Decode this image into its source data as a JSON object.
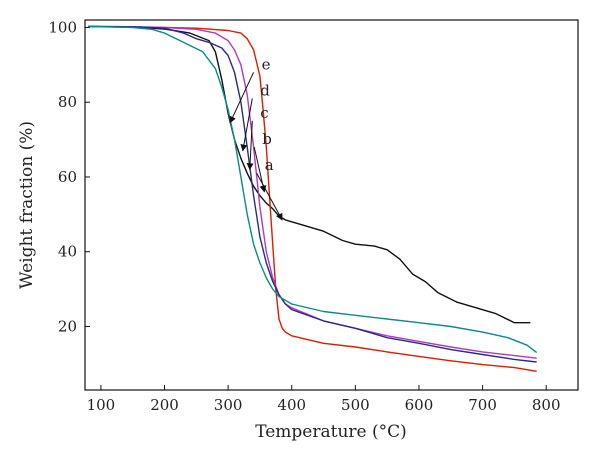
{
  "chart_data": {
    "type": "line",
    "xlabel": "Temperature (°C)",
    "ylabel": "Weight fraction (%)",
    "xlim": [
      75,
      850
    ],
    "ylim": [
      3,
      102
    ],
    "xticks": [
      100,
      200,
      300,
      400,
      500,
      600,
      700,
      800
    ],
    "yticks": [
      20,
      40,
      60,
      80,
      100
    ],
    "grid": false,
    "series": [
      {
        "name": "a",
        "color": "#111111",
        "x": [
          80,
          150,
          200,
          240,
          270,
          280,
          290,
          300,
          310,
          320,
          330,
          340,
          350,
          360,
          370,
          380,
          390,
          400,
          420,
          450,
          480,
          500,
          530,
          550,
          570,
          590,
          610,
          630,
          660,
          690,
          720,
          750,
          775
        ],
        "y": [
          100.3,
          100.1,
          99.6,
          98.5,
          96.5,
          93.5,
          86,
          77,
          70,
          65,
          61,
          57.5,
          55,
          53,
          51.5,
          49.5,
          48.5,
          48,
          47,
          45.5,
          43,
          42,
          41.5,
          40.5,
          38,
          34,
          32,
          29,
          26.5,
          25,
          23.5,
          21,
          21
        ]
      },
      {
        "name": "b",
        "color": "#d81e05",
        "x": [
          80,
          150,
          200,
          250,
          300,
          320,
          330,
          340,
          350,
          355,
          360,
          365,
          370,
          375,
          380,
          385,
          390,
          400,
          450,
          500,
          550,
          600,
          650,
          700,
          750,
          785
        ],
        "y": [
          100.3,
          100.1,
          100,
          99.8,
          99.2,
          98.5,
          97,
          94,
          87,
          78,
          68,
          55,
          42,
          30,
          22,
          19.5,
          18.5,
          17.5,
          15.5,
          14.5,
          13.2,
          12,
          10.8,
          9.8,
          9,
          8
        ]
      },
      {
        "name": "c",
        "color": "#b03ac0",
        "x": [
          80,
          150,
          200,
          250,
          280,
          300,
          310,
          320,
          330,
          340,
          350,
          360,
          370,
          380,
          390,
          400,
          450,
          500,
          550,
          600,
          650,
          700,
          750,
          785
        ],
        "y": [
          100.3,
          100.2,
          100,
          99.5,
          98.5,
          96.5,
          94,
          90,
          82,
          68,
          52,
          40,
          33,
          28.5,
          26,
          25,
          21.5,
          19.5,
          17.5,
          16,
          14.5,
          13.2,
          12.2,
          11.5
        ]
      },
      {
        "name": "d",
        "color": "#2a2a8a",
        "x": [
          80,
          150,
          200,
          230,
          250,
          270,
          290,
          300,
          310,
          320,
          330,
          340,
          350,
          360,
          370,
          380,
          390,
          400,
          450,
          500,
          550,
          600,
          650,
          700,
          750,
          785
        ],
        "y": [
          100.3,
          100.2,
          99.8,
          98.5,
          97,
          96,
          94.5,
          92.5,
          88,
          80,
          68,
          55,
          44,
          37,
          32,
          28.5,
          26,
          24.5,
          21.5,
          19.5,
          17,
          15.5,
          13.8,
          12.5,
          11.2,
          10.5
        ]
      },
      {
        "name": "e",
        "color": "#0b8a8a",
        "x": [
          80,
          150,
          180,
          200,
          230,
          260,
          280,
          290,
          300,
          310,
          320,
          330,
          340,
          350,
          360,
          370,
          380,
          390,
          400,
          450,
          500,
          550,
          600,
          650,
          700,
          740,
          770,
          785
        ],
        "y": [
          100.3,
          100,
          99.5,
          98.5,
          96,
          93.5,
          89,
          84,
          78,
          70,
          60,
          50,
          42,
          37,
          33,
          30,
          28,
          27,
          26,
          24,
          23,
          22,
          21,
          20,
          18.5,
          17,
          15,
          13
        ]
      }
    ],
    "annotations": [
      {
        "label": "e",
        "target_x": 303,
        "target_y": 74.5,
        "label_x": 340,
        "label_y": 88
      },
      {
        "label": "d",
        "target_x": 323,
        "target_y": 67,
        "label_x": 338,
        "label_y": 81
      },
      {
        "label": "c",
        "target_x": 334,
        "target_y": 62,
        "label_x": 338,
        "label_y": 75
      },
      {
        "label": "b",
        "target_x": 357,
        "target_y": 56,
        "label_x": 341,
        "label_y": 68
      },
      {
        "label": "a",
        "target_x": 385,
        "target_y": 48.5,
        "label_x": 345,
        "label_y": 61
      }
    ]
  }
}
